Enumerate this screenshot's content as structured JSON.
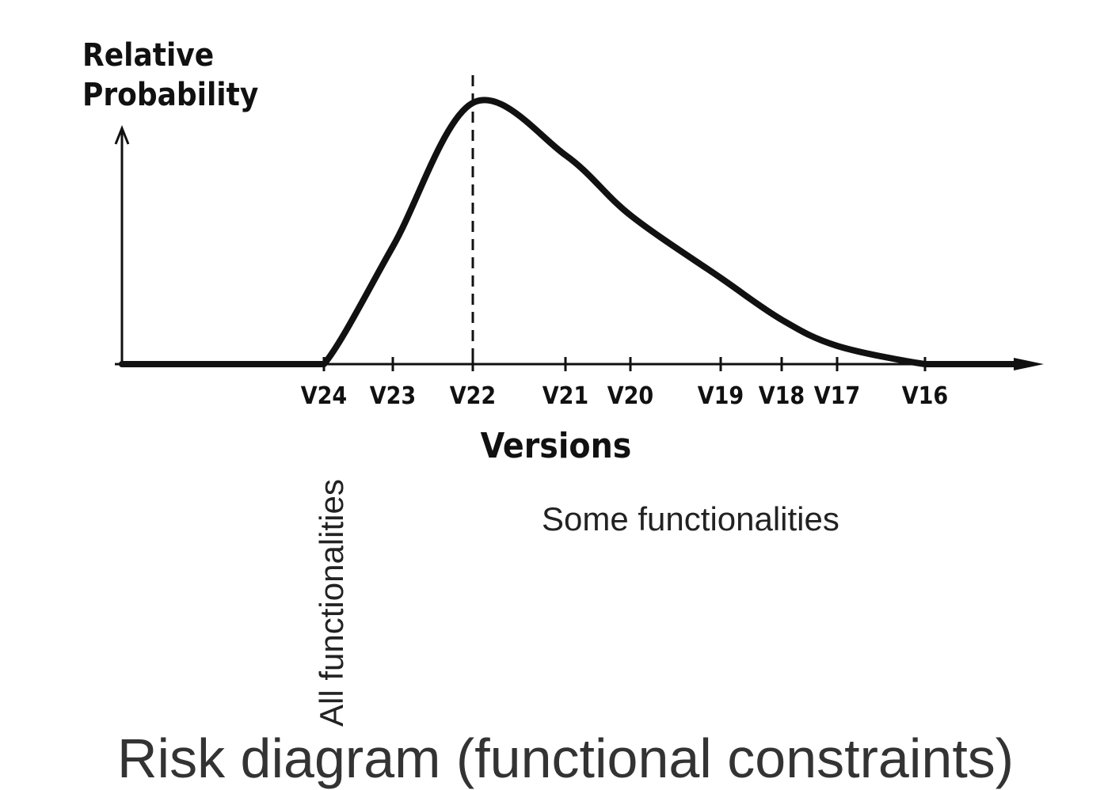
{
  "chart_data": {
    "type": "line",
    "ylabel": [
      "Relative",
      "Probability"
    ],
    "xlabel": "Versions",
    "x_categories": [
      "V24",
      "V23",
      "V22",
      "V21",
      "V20",
      "V19",
      "V18",
      "V17",
      "V16"
    ],
    "series": [
      {
        "values": [
          0.0,
          0.45,
          1.0,
          0.8,
          0.57,
          0.33,
          0.17,
          0.07,
          0.0
        ]
      }
    ],
    "flat_before_first_category": 0.0,
    "continues_after_last_category": 0.0,
    "peak_marker": {
      "category": "V22",
      "style": "dashed vertical line"
    },
    "ylim": [
      0,
      1
    ],
    "grid": false
  },
  "annotations": {
    "all": "All functionalities",
    "some": "Some functionalities"
  },
  "bottom_title": "Risk diagram (functional constraints)"
}
